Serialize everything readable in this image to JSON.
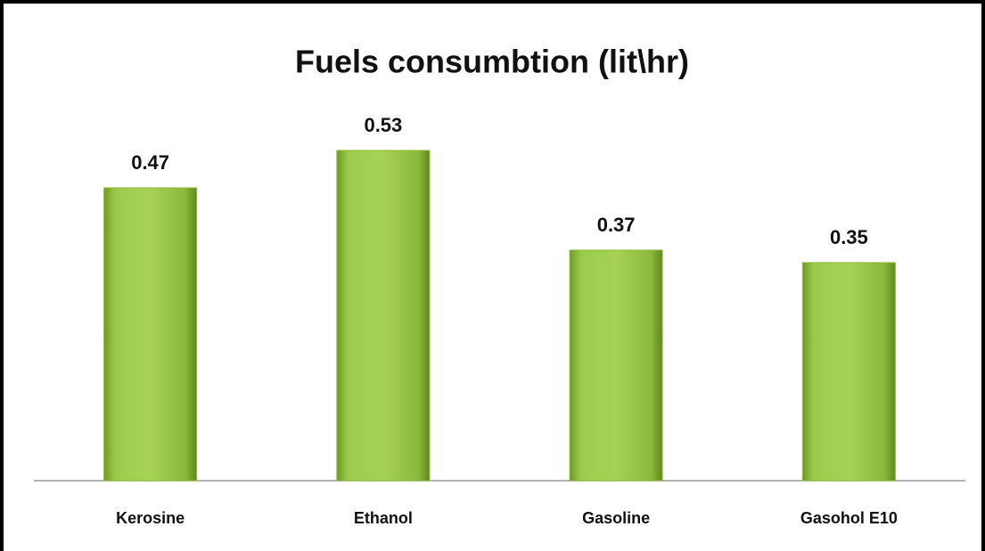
{
  "chart_data": {
    "type": "bar",
    "title": "Fuels consumbtion (lit\\hr)",
    "categories": [
      "Kerosine",
      "Ethanol",
      "Gasoline",
      "Gasohol E10"
    ],
    "values": [
      0.47,
      0.53,
      0.37,
      0.35
    ],
    "color": "#8cb83a"
  }
}
